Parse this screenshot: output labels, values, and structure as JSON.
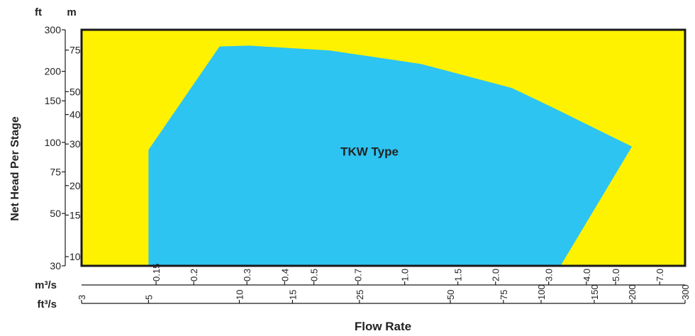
{
  "chart_data": {
    "type": "area",
    "region_label": "TKW Type",
    "xlabel": "Flow Rate",
    "ylabel": "Net Head Per Stage",
    "y_unit_ft": "ft",
    "y_unit_m": "m",
    "x_unit_m3s": "m³/s",
    "x_unit_ft3s": "ft³/s",
    "y_scale": "log",
    "x_scale": "log",
    "ylim_ft": [
      30,
      300
    ],
    "xlim_ft3s": [
      3,
      300
    ],
    "y_ticks_ft": [
      "30",
      "50",
      "75",
      "100",
      "150",
      "200",
      "300"
    ],
    "y_ticks_m": [
      "10",
      "15",
      "20",
      "30",
      "40",
      "50",
      "75"
    ],
    "x_ticks_ft3s": [
      "3",
      "5",
      "10",
      "15",
      "25",
      "50",
      "75",
      "100",
      "150",
      "200",
      "300"
    ],
    "x_ticks_m3s": [
      "0.15",
      "0.2",
      "0.3",
      "0.4",
      "0.5",
      "0.7",
      "1.0",
      "1.5",
      "2.0",
      "3.0",
      "4.0",
      "5.0",
      "7.0"
    ],
    "envelope": {
      "x_ft3s": [
        5.0,
        5.0,
        8.6,
        10.8,
        20.0,
        40.0,
        80.0,
        110.0,
        200.0,
        116.0
      ],
      "head_ft": [
        30,
        93,
        255,
        257,
        245,
        215,
        170,
        140,
        96,
        30
      ]
    },
    "colors": {
      "background": "#fef200",
      "region": "#2dc4f2",
      "frame": "#1a1a1a",
      "text": "#222222"
    }
  }
}
